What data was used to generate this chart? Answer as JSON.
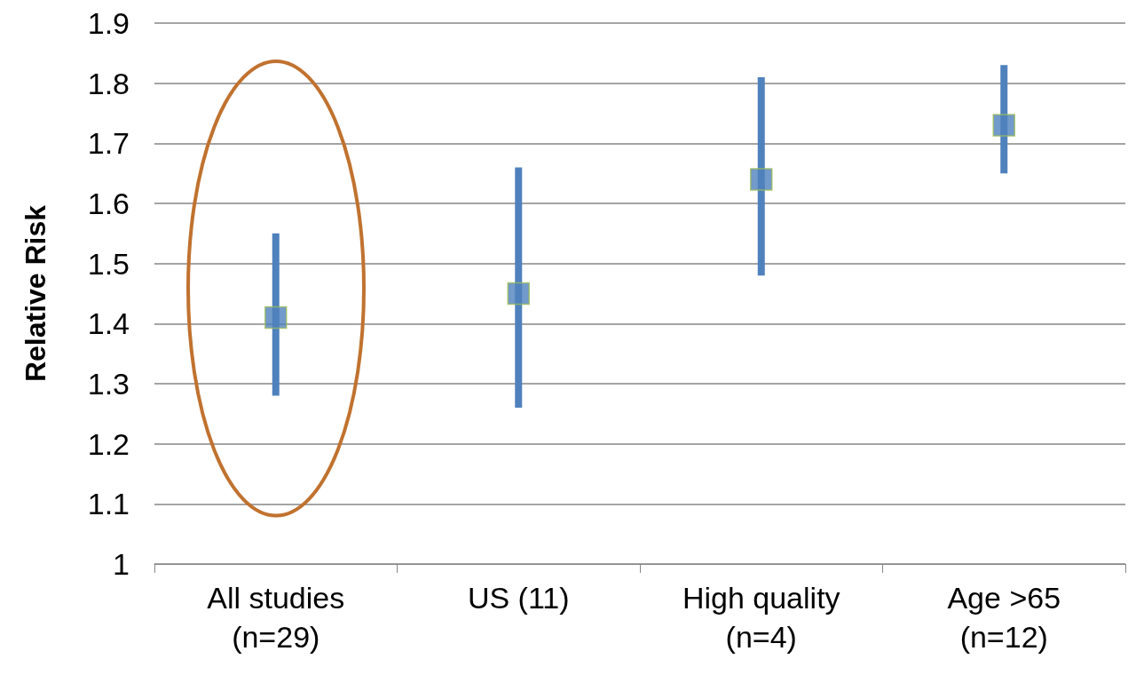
{
  "chart_data": {
    "type": "scatter",
    "ylabel": "Relative Risk",
    "categories": [
      "All studies\n(n=29)",
      "US (11)",
      "High quality\n(n=4)",
      "Age >65\n(n=12)"
    ],
    "series": [
      {
        "color": "#4f81bd",
        "values": [
          1.41,
          1.45,
          1.64,
          1.73
        ],
        "errors": [
          [
            1.28,
            1.55
          ],
          [
            1.26,
            1.66
          ],
          [
            1.48,
            1.81
          ],
          [
            1.65,
            1.83
          ]
        ]
      }
    ],
    "ylim": [
      1,
      1.9
    ],
    "yticks": [
      1,
      1.1,
      1.2,
      1.3,
      1.4,
      1.5,
      1.6,
      1.7,
      1.8,
      1.9
    ],
    "grid": "y",
    "marker": "square"
  }
}
